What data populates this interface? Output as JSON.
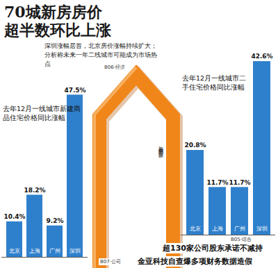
{
  "headline": {
    "title": [
      "70城新房房价",
      "超半数环比上涨"
    ],
    "subtitle": "深圳涨幅居首，北京房价涨幅持续扩大；分析称未来一年二线城市可能成为市场热点",
    "page": "B06·经济"
  },
  "chart_data": [
    {
      "type": "bar",
      "title": "去年12月一线城市新建商品住宅价格同比涨幅",
      "categories": [
        "北京",
        "上海",
        "广州",
        "深圳"
      ],
      "values": [
        10.4,
        18.2,
        9.2,
        47.5
      ],
      "value_labels": [
        "10.4%",
        "18.2%",
        "9.2%",
        "47.5%"
      ],
      "color": "#2f80cc",
      "ylim": [
        0,
        50
      ],
      "data_labels": true,
      "tick_labels": false
    },
    {
      "type": "bar",
      "title": "去年12月一线城市二手住宅价格同比涨幅",
      "categories": [
        "北京",
        "上海",
        "广州",
        "深圳"
      ],
      "values": [
        20.8,
        11.7,
        11.7,
        42.6
      ],
      "value_labels": [
        "20.8%",
        "11.7%",
        "11.7%",
        "42.6%"
      ],
      "color": "#2f80cc",
      "ylim": [
        0,
        45
      ],
      "data_labels": true,
      "tick_labels": false
    }
  ],
  "credit": "新京报制图/张妍",
  "teasers": [
    {
      "text": "超130家公司股东承诺不减持",
      "page": "B05·综合"
    },
    {
      "text": "金亚科技自查爆多项财务数据造假",
      "page": "B07·公司"
    }
  ]
}
